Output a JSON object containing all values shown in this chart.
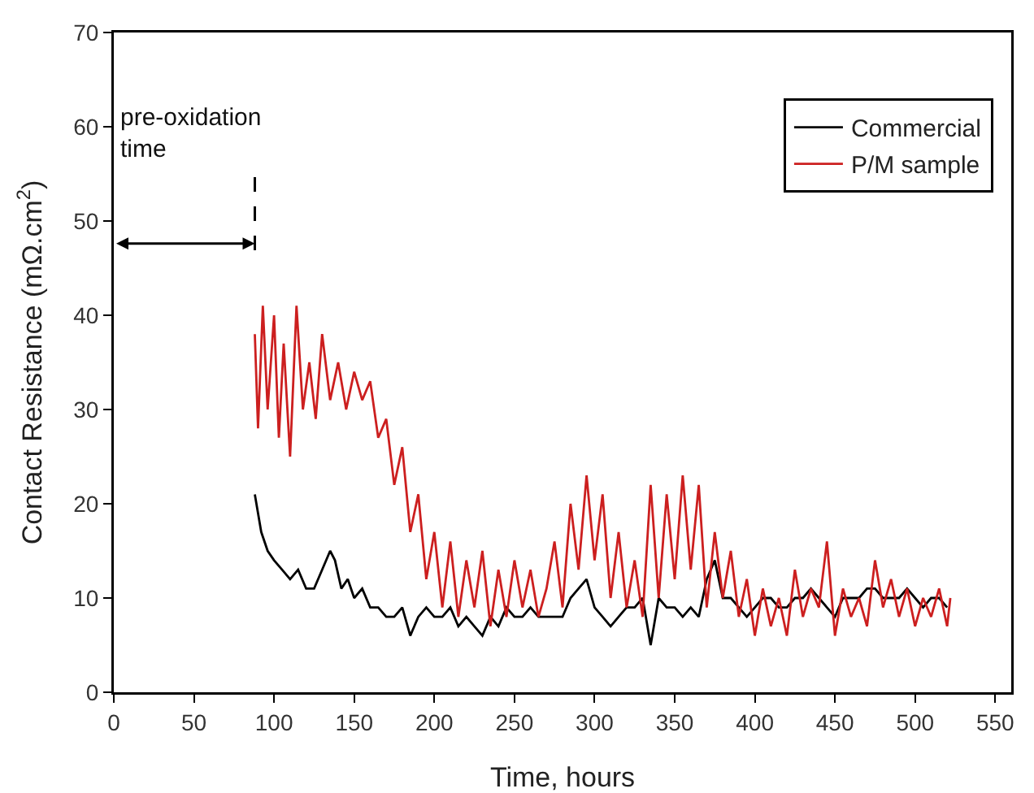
{
  "chart_data": {
    "type": "line",
    "xlabel": "Time, hours",
    "ylabel": "Contact Resistance (mΩ.cm$^{2}$)",
    "xlim": [
      0,
      560
    ],
    "xticks": [
      0,
      50,
      100,
      150,
      200,
      250,
      300,
      350,
      400,
      450,
      500,
      550
    ],
    "ylim": [
      0,
      70
    ],
    "yticks": [
      0,
      10,
      20,
      30,
      40,
      50,
      60,
      70
    ],
    "grid": false,
    "legend": "top right",
    "line_style": "solid",
    "marker": "none",
    "ref_lines": [
      {
        "axis": "x",
        "value": 88,
        "label": "pre-oxidation time",
        "line_style": "dashed",
        "color": "#000000"
      }
    ],
    "series": [
      {
        "name": "Commercial",
        "color": "#000000",
        "x": [
          88,
          92,
          96,
          100,
          105,
          110,
          115,
          120,
          125,
          130,
          135,
          138,
          142,
          146,
          150,
          155,
          160,
          165,
          170,
          175,
          180,
          185,
          190,
          195,
          200,
          205,
          210,
          215,
          220,
          225,
          230,
          235,
          240,
          245,
          250,
          255,
          260,
          265,
          270,
          275,
          280,
          285,
          290,
          295,
          300,
          305,
          310,
          315,
          320,
          325,
          330,
          335,
          340,
          345,
          350,
          355,
          360,
          365,
          370,
          375,
          380,
          385,
          390,
          395,
          400,
          405,
          410,
          415,
          420,
          425,
          430,
          435,
          440,
          445,
          450,
          455,
          460,
          465,
          470,
          475,
          480,
          485,
          490,
          495,
          500,
          505,
          510,
          515,
          520
        ],
        "values": [
          21,
          17,
          15,
          14,
          13,
          12,
          13,
          11,
          11,
          13,
          15,
          14,
          11,
          12,
          10,
          11,
          9,
          9,
          8,
          8,
          9,
          6,
          8,
          9,
          8,
          8,
          9,
          7,
          8,
          7,
          6,
          8,
          7,
          9,
          8,
          8,
          9,
          8,
          8,
          8,
          8,
          10,
          11,
          12,
          9,
          8,
          7,
          8,
          9,
          9,
          10,
          5,
          10,
          9,
          9,
          8,
          9,
          8,
          12,
          14,
          10,
          10,
          9,
          8,
          9,
          10,
          10,
          9,
          9,
          10,
          10,
          11,
          10,
          9,
          8,
          10,
          10,
          10,
          11,
          11,
          10,
          10,
          10,
          11,
          10,
          9,
          10,
          10,
          9
        ]
      },
      {
        "name": "P/M sample",
        "color": "#cc1f1f",
        "x": [
          88,
          90,
          93,
          96,
          100,
          103,
          106,
          110,
          114,
          118,
          122,
          126,
          130,
          135,
          140,
          145,
          150,
          155,
          160,
          165,
          170,
          175,
          180,
          185,
          190,
          195,
          200,
          205,
          210,
          215,
          220,
          225,
          230,
          235,
          240,
          245,
          250,
          255,
          260,
          265,
          270,
          275,
          280,
          285,
          290,
          295,
          300,
          305,
          310,
          315,
          320,
          325,
          330,
          335,
          340,
          345,
          350,
          355,
          360,
          365,
          370,
          375,
          380,
          385,
          390,
          395,
          400,
          405,
          410,
          415,
          420,
          425,
          430,
          435,
          440,
          445,
          450,
          455,
          460,
          465,
          470,
          475,
          480,
          485,
          490,
          495,
          500,
          505,
          510,
          515,
          520,
          522
        ],
        "values": [
          38,
          28,
          41,
          30,
          40,
          27,
          37,
          25,
          41,
          30,
          35,
          29,
          38,
          31,
          35,
          30,
          34,
          31,
          33,
          27,
          29,
          22,
          26,
          17,
          21,
          12,
          17,
          9,
          16,
          8,
          14,
          9,
          15,
          7,
          13,
          8,
          14,
          9,
          13,
          8,
          11,
          16,
          9,
          20,
          13,
          23,
          14,
          21,
          10,
          17,
          9,
          14,
          8,
          22,
          10,
          21,
          12,
          23,
          13,
          22,
          9,
          17,
          10,
          15,
          8,
          12,
          6,
          11,
          7,
          10,
          6,
          13,
          8,
          11,
          9,
          16,
          6,
          11,
          8,
          10,
          7,
          14,
          9,
          12,
          8,
          11,
          7,
          10,
          8,
          11,
          7,
          10
        ]
      }
    ]
  }
}
